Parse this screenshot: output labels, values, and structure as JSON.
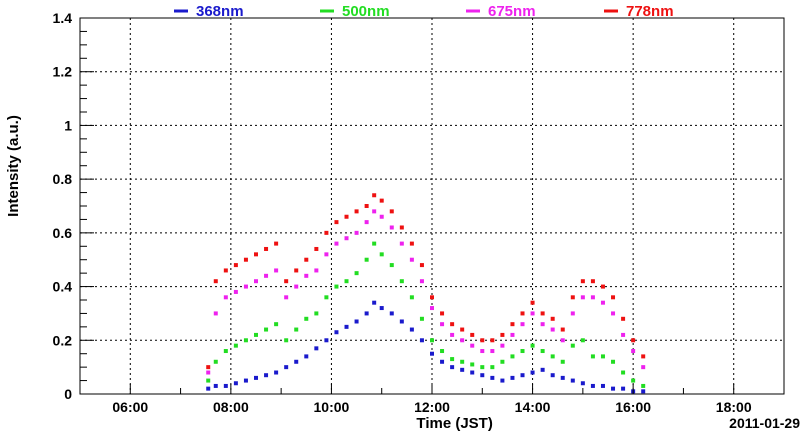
{
  "chart_data": {
    "type": "scatter",
    "xlabel": "Time (JST)",
    "ylabel": "Intensity (a.u.)",
    "date_label": "2011-01-29",
    "xlim": [
      5,
      19
    ],
    "ylim": [
      0,
      1.4
    ],
    "x_ticks": [
      "06:00",
      "08:00",
      "10:00",
      "12:00",
      "14:00",
      "16:00",
      "18:00"
    ],
    "x_tick_values": [
      6,
      8,
      10,
      12,
      14,
      16,
      18
    ],
    "y_ticks": [
      "0",
      "0.2",
      "0.4",
      "0.6",
      "0.8",
      "1",
      "1.2",
      "1.4"
    ],
    "y_tick_values": [
      0,
      0.2,
      0.4,
      0.6,
      0.8,
      1.0,
      1.2,
      1.4
    ],
    "grid": true,
    "legend_position": "top",
    "series": [
      {
        "name": "368nm",
        "color": "#1a1acc",
        "points": [
          [
            7.55,
            0.02
          ],
          [
            7.7,
            0.03
          ],
          [
            7.9,
            0.03
          ],
          [
            8.1,
            0.04
          ],
          [
            8.3,
            0.05
          ],
          [
            8.5,
            0.06
          ],
          [
            8.7,
            0.07
          ],
          [
            8.9,
            0.08
          ],
          [
            9.1,
            0.1
          ],
          [
            9.3,
            0.12
          ],
          [
            9.5,
            0.14
          ],
          [
            9.7,
            0.17
          ],
          [
            9.9,
            0.2
          ],
          [
            10.1,
            0.23
          ],
          [
            10.3,
            0.25
          ],
          [
            10.5,
            0.27
          ],
          [
            10.7,
            0.3
          ],
          [
            10.85,
            0.34
          ],
          [
            11.0,
            0.32
          ],
          [
            11.2,
            0.3
          ],
          [
            11.4,
            0.27
          ],
          [
            11.6,
            0.24
          ],
          [
            11.8,
            0.2
          ],
          [
            12.0,
            0.15
          ],
          [
            12.2,
            0.12
          ],
          [
            12.4,
            0.1
          ],
          [
            12.6,
            0.09
          ],
          [
            12.8,
            0.08
          ],
          [
            13.0,
            0.07
          ],
          [
            13.2,
            0.06
          ],
          [
            13.4,
            0.05
          ],
          [
            13.6,
            0.06
          ],
          [
            13.8,
            0.07
          ],
          [
            14.0,
            0.08
          ],
          [
            14.2,
            0.09
          ],
          [
            14.4,
            0.07
          ],
          [
            14.6,
            0.06
          ],
          [
            14.8,
            0.05
          ],
          [
            15.0,
            0.04
          ],
          [
            15.2,
            0.03
          ],
          [
            15.4,
            0.03
          ],
          [
            15.6,
            0.02
          ],
          [
            15.8,
            0.02
          ],
          [
            16.0,
            0.01
          ],
          [
            16.2,
            0.01
          ]
        ]
      },
      {
        "name": "500nm",
        "color": "#22dd22",
        "points": [
          [
            7.55,
            0.05
          ],
          [
            7.7,
            0.12
          ],
          [
            7.9,
            0.16
          ],
          [
            8.1,
            0.18
          ],
          [
            8.3,
            0.2
          ],
          [
            8.5,
            0.22
          ],
          [
            8.7,
            0.24
          ],
          [
            8.9,
            0.26
          ],
          [
            9.1,
            0.2
          ],
          [
            9.3,
            0.24
          ],
          [
            9.5,
            0.28
          ],
          [
            9.7,
            0.3
          ],
          [
            9.9,
            0.36
          ],
          [
            10.1,
            0.4
          ],
          [
            10.3,
            0.42
          ],
          [
            10.5,
            0.45
          ],
          [
            10.7,
            0.5
          ],
          [
            10.85,
            0.56
          ],
          [
            11.0,
            0.52
          ],
          [
            11.2,
            0.48
          ],
          [
            11.4,
            0.42
          ],
          [
            11.6,
            0.36
          ],
          [
            11.8,
            0.28
          ],
          [
            12.0,
            0.2
          ],
          [
            12.2,
            0.16
          ],
          [
            12.4,
            0.13
          ],
          [
            12.6,
            0.12
          ],
          [
            12.8,
            0.11
          ],
          [
            13.0,
            0.1
          ],
          [
            13.2,
            0.1
          ],
          [
            13.4,
            0.12
          ],
          [
            13.6,
            0.14
          ],
          [
            13.8,
            0.16
          ],
          [
            14.0,
            0.18
          ],
          [
            14.2,
            0.16
          ],
          [
            14.4,
            0.14
          ],
          [
            14.6,
            0.12
          ],
          [
            14.8,
            0.18
          ],
          [
            15.0,
            0.2
          ],
          [
            15.2,
            0.14
          ],
          [
            15.4,
            0.14
          ],
          [
            15.6,
            0.12
          ],
          [
            15.8,
            0.08
          ],
          [
            16.0,
            0.05
          ],
          [
            16.2,
            0.03
          ]
        ]
      },
      {
        "name": "675nm",
        "color": "#ee22ee",
        "points": [
          [
            7.55,
            0.08
          ],
          [
            7.7,
            0.3
          ],
          [
            7.9,
            0.36
          ],
          [
            8.1,
            0.38
          ],
          [
            8.3,
            0.4
          ],
          [
            8.5,
            0.42
          ],
          [
            8.7,
            0.44
          ],
          [
            8.9,
            0.46
          ],
          [
            9.1,
            0.36
          ],
          [
            9.3,
            0.4
          ],
          [
            9.5,
            0.44
          ],
          [
            9.7,
            0.46
          ],
          [
            9.9,
            0.52
          ],
          [
            10.1,
            0.56
          ],
          [
            10.3,
            0.58
          ],
          [
            10.5,
            0.6
          ],
          [
            10.7,
            0.64
          ],
          [
            10.85,
            0.68
          ],
          [
            11.0,
            0.66
          ],
          [
            11.2,
            0.62
          ],
          [
            11.4,
            0.56
          ],
          [
            11.6,
            0.5
          ],
          [
            11.8,
            0.42
          ],
          [
            12.0,
            0.32
          ],
          [
            12.2,
            0.26
          ],
          [
            12.4,
            0.22
          ],
          [
            12.6,
            0.2
          ],
          [
            12.8,
            0.18
          ],
          [
            13.0,
            0.16
          ],
          [
            13.2,
            0.16
          ],
          [
            13.4,
            0.18
          ],
          [
            13.6,
            0.22
          ],
          [
            13.8,
            0.26
          ],
          [
            14.0,
            0.3
          ],
          [
            14.2,
            0.26
          ],
          [
            14.4,
            0.24
          ],
          [
            14.6,
            0.2
          ],
          [
            14.8,
            0.3
          ],
          [
            15.0,
            0.36
          ],
          [
            15.2,
            0.36
          ],
          [
            15.4,
            0.34
          ],
          [
            15.6,
            0.3
          ],
          [
            15.8,
            0.22
          ],
          [
            16.0,
            0.16
          ],
          [
            16.2,
            0.1
          ]
        ]
      },
      {
        "name": "778nm",
        "color": "#ee1111",
        "points": [
          [
            7.55,
            0.1
          ],
          [
            7.7,
            0.42
          ],
          [
            7.9,
            0.46
          ],
          [
            8.1,
            0.48
          ],
          [
            8.3,
            0.5
          ],
          [
            8.5,
            0.52
          ],
          [
            8.7,
            0.54
          ],
          [
            8.9,
            0.56
          ],
          [
            9.1,
            0.42
          ],
          [
            9.3,
            0.46
          ],
          [
            9.5,
            0.5
          ],
          [
            9.7,
            0.54
          ],
          [
            9.9,
            0.6
          ],
          [
            10.1,
            0.64
          ],
          [
            10.3,
            0.66
          ],
          [
            10.5,
            0.68
          ],
          [
            10.7,
            0.7
          ],
          [
            10.85,
            0.74
          ],
          [
            11.0,
            0.72
          ],
          [
            11.2,
            0.68
          ],
          [
            11.4,
            0.62
          ],
          [
            11.6,
            0.56
          ],
          [
            11.8,
            0.48
          ],
          [
            12.0,
            0.36
          ],
          [
            12.2,
            0.3
          ],
          [
            12.4,
            0.26
          ],
          [
            12.6,
            0.24
          ],
          [
            12.8,
            0.22
          ],
          [
            13.0,
            0.2
          ],
          [
            13.2,
            0.2
          ],
          [
            13.4,
            0.22
          ],
          [
            13.6,
            0.26
          ],
          [
            13.8,
            0.3
          ],
          [
            14.0,
            0.34
          ],
          [
            14.2,
            0.3
          ],
          [
            14.4,
            0.28
          ],
          [
            14.6,
            0.24
          ],
          [
            14.8,
            0.36
          ],
          [
            15.0,
            0.42
          ],
          [
            15.2,
            0.42
          ],
          [
            15.4,
            0.4
          ],
          [
            15.6,
            0.36
          ],
          [
            15.8,
            0.28
          ],
          [
            16.0,
            0.2
          ],
          [
            16.2,
            0.14
          ]
        ]
      }
    ]
  }
}
